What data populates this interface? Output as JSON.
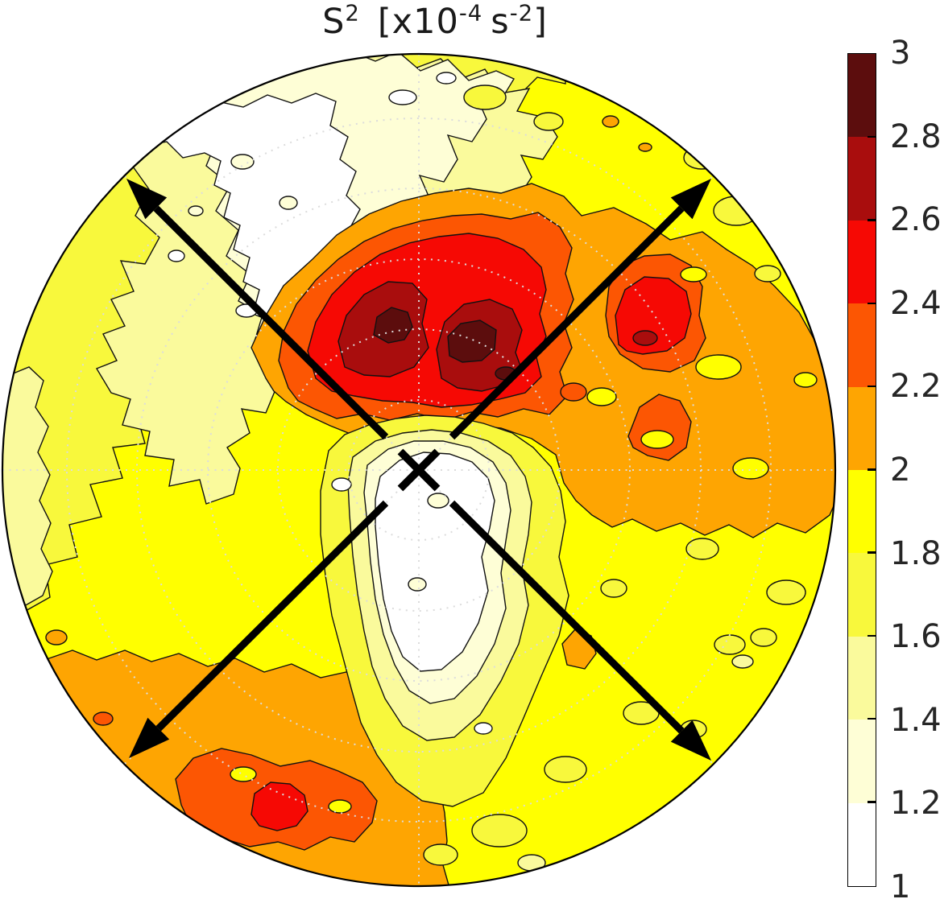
{
  "title": {
    "prefix": "S",
    "prefix_exp": "2",
    "open": "[x10",
    "exp1": "-4",
    "mid": "s",
    "exp2": "-2",
    "close": "]"
  },
  "colorbar": {
    "labels": [
      "3",
      "2.8",
      "2.6",
      "2.4",
      "2.2",
      "2",
      "1.8",
      "1.6",
      "1.4",
      "1.2",
      "1"
    ],
    "colors_top_to_bottom": [
      "#5C0D0D",
      "#A90D0D",
      "#F60904",
      "#FC5603",
      "#FEA502",
      "#FFFF00",
      "#F8F83C",
      "#FAFA9C",
      "#FEFED6",
      "#FFFFFF"
    ],
    "min": 1,
    "max": 3,
    "tick_step": 0.2
  },
  "chart_data": {
    "type": "heatmap",
    "subtype": "filled-contour-polar",
    "title": "S^2 [x10^-4 s^-2]",
    "variable": "S^2",
    "units": "x10^-4 s^-2",
    "levels": [
      1,
      1.2,
      1.4,
      1.6,
      1.8,
      2,
      2.2,
      2.4,
      2.6,
      2.8,
      3
    ],
    "level_colors": [
      "#FFFFFF",
      "#FEFED6",
      "#FAFA9C",
      "#F8F83C",
      "#FFFF00",
      "#FEA502",
      "#FC5603",
      "#F60904",
      "#A90D0D",
      "#5C0D0D"
    ],
    "colorbar_range": [
      1,
      3
    ],
    "grid": "dotted polar grid, rings and 45-degree radials, light gray",
    "features": [
      {
        "name": "central-minimum",
        "value_band": "1.0-1.2",
        "position": "at and just south of pole (disk center)"
      },
      {
        "name": "primary-maximum",
        "value_band": "2.8-3.0",
        "position": "north-northeast of center at ~30-40% radius, elongated east-west"
      },
      {
        "name": "secondary-maximum",
        "value_band": "2.4-2.8",
        "position": "east of the primary maximum, ~55% radius"
      },
      {
        "name": "eastern-high-band",
        "value_band": "2.0-2.4",
        "position": "broad orange lobe covering east sector to the rim"
      },
      {
        "name": "southwest-high-band",
        "value_band": "2.0-2.6",
        "position": "arc along southwest rim with a small 2.4-2.6 red core"
      },
      {
        "name": "northwest-minimum",
        "value_band": "1.0-1.4",
        "position": "large pale sector in the northwest quadrant"
      },
      {
        "name": "background-field",
        "value_band": "1.6-2.0",
        "position": "yellow field over most remaining area"
      }
    ],
    "annotations": {
      "arrows": "two thick black double-headed arrows crossing diagonally (NW-SE and SW-NE) through the pole",
      "center_marker": "bold black x at the pole",
      "outline": "black circular rim; thin black contour outlines on all filled levels"
    }
  }
}
